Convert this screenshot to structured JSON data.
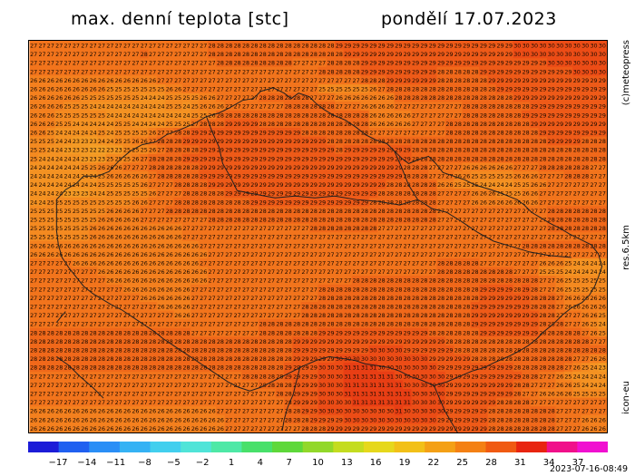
{
  "header": {
    "title": "max. denní teplota [stc]",
    "date": "pondělí 17.07.2023"
  },
  "side": {
    "credit": "(c)meteopress",
    "resolution": "res.6.5km",
    "model": "icon-eu"
  },
  "timestamp": "2023-07-16-08:49",
  "colorscale": {
    "tick_labels": [
      "−17",
      "−14",
      "−11",
      "−8",
      "−5",
      "−2",
      "1",
      "4",
      "7",
      "10",
      "13",
      "16",
      "19",
      "22",
      "25",
      "28",
      "31",
      "34",
      "37"
    ],
    "colors": [
      "#1c1cd8",
      "#2060f0",
      "#2a8ef6",
      "#35b2f4",
      "#42cfee",
      "#50e4d8",
      "#4ee8a6",
      "#48e06a",
      "#5ed83a",
      "#92d82a",
      "#c4dc20",
      "#e6d81c",
      "#f2c018",
      "#f4a016",
      "#f48014",
      "#f05a12",
      "#e82410",
      "#f0108a",
      "#f010d0"
    ]
  },
  "map_palette": {
    "21": "#f4a828",
    "22": "#f4a026",
    "23": "#f49a24",
    "24": "#f49222",
    "25": "#f48a20",
    "26": "#f4801e",
    "27": "#f2741c",
    "28": "#f0681a",
    "29": "#ee5a18",
    "30": "#ec4c16",
    "31": "#e83e14"
  },
  "grid": {
    "rows": [
      "2727272727272727272727272727272727272727272828282828282828282828282828282929292929292929292929292929292929292929293030303030303030303030",
      "2727272727272727272727272728272727272727272828282828282828282828282828282829292929292929292929292929292929292929293030303030303030303030",
      "2727272727272727272727272727272727272727272728282828282828282827272727282828282929292929292929292929292929292929292929292930303030303030",
      "2727272727272727272727272727272727272727272727272727272727272727272728282828282929292929292929292828282828292929292929292929292930303030",
      "2626262626262626262626262626262727272727272727272727272727272727272727272727272828282929292929292828282828282929292929292929292929292929",
      "2626262626262626262525252525252526262727272727272727272727272727272725252525252526272828282828282828282828282829292929292929292929292929",
      "2626262626262525252525252524242425252525262627272727272828282828282727272626262626262628282828282828282828282828282929292929292929292929",
      "2626262625252524242424242424242425252425262626272727272727272828282828282727272626262627272727272727272828282828282828292929292929292929",
      "2626262525252525252424242424242424242425252628282828282828282828282828282828282826262626262727272727272828282828282829292929292929292929",
      "2626262525242424242425252424242425252527282828292929292828282828282828282828282826262626262727272728282828282828282828292929292929292929",
      "2626252424242424252425252525262727282829292929292929292929292929282828282828282827272727272727272728282828282828282828282929292929292929",
      "2525252424232323242425252626272828282929292929292929292929292929292929282828282828282828282828282828282828282828282828282829292929282828",
      "2525242423232322222323252525262728282828292929292929292929292929292929292829292929292929292828282828282828282828282828282828282828282828",
      "2524242424242323232525252627282828282929292929292929292929292929292929292929292929292929292828282828282828282828282828282828282828282828",
      "2424242424242525262626272727282828282828292929292929292929292929292929292929292929292929282828272727272626262626262727272828282828282727",
      "2424242424242424252626262626272828282828292929292929292929292929292929292929292929292929282828272727262625252525252626262727272828282727",
      "2424242424242424252525252526272727282828282929292929292929292929292929292929292929292828282828282626252525242424242525262627272727272727",
      "2424242423232324242525252525262727272828282828292929292929292929292929292929292929282828282828282727272726262625252526262727272727272727",
      "2424252525252525252525252626272727282828282828282828292929292929292929292929292928282828282828282727272726262626262626262727272727272727",
      "2525252525252525252626262627272728282828282828282828282828282828282828282828282828282828282828282727272727272727272727272728282828282828",
      "2525252525252525262626262627272727272727272828282828282828282828282828282828282828282828282828282727272727272727272727272728282828282828",
      "2525252525252526262626262626262626262727272727272727272727272727272828282828282828272727272727272727272727272727272727272728282828282828",
      "2525252525252526262626262626262626262727272727272727272727272727272727272727272727272727272727272727272727272727272727272727272727272727",
      "2626262626262626262626262626262626262626272727272727272727272727272727272727272727272727272727272727272727272727272728282828282828282828",
      "2626262626262626262626262626262626262626262727272727272727272727272727272727272727272727272727272727272727272727272727272727272727272727",
      "2727272727262626262626262626262626262626272727272727272727272727272727272727272727272727272727272828282828272727272727272626262524242424",
      "2727272727272727262626262626262626262626262727272727272727272727272727272727272727272727272727272828282828282828282727272525252424242424",
      "2727272727272727272626262626262626262626262727272727272727272727272727272727282828282828282828282828282828282828282828282727262525252525",
      "2727272727272727272727262626262626262627272727272727272727272727272728282828282828282828282828282828282828292929292829282727262525252525",
      "2727272727272727272727272726262626262627272727272727272727272727272728282828282828282828282828282828282828292929292929282828272626262626",
      "2727272727272727272727272727272626262627272727272727272727272727282828282828282828282828282828282828282829292929292929282828272626262626",
      "2727272727272727272727272727272727262627272727272727272727272727282828282828282828282828282828282828282829292929292929292828272727262625",
      "2727272727272727272727272727272727272727272727272727272828282828282828282828282828282828282828282828282829292929292929292828282727262524",
      "2828282828282828282828282828282828282827272727272727272828282828282829292929292929292929292929282828282828292929292929292828282828272625",
      "2828282828282828282828282828282828282828282828282828282828282829292929292929292929292929292929292928282828282828282828282828282828282727",
      "2828282828282828282828282828282828282828282828282828282828282829292929292929292930303030292929292929282828282828282828282828282828282828",
      "2828282828282828282828282828282828282828282828282828282828282829292929293030303030303030303030292929292928282828282828282828282827272626",
      "2828282828282828282828282828282828282828282828282828282828282929292930303031313131303030303030302929292929292929292828282828282726252423",
      "2727272727272727272727272727272727272727272727272728282828282929292930303031313131313130303030303029292929292929292928282727262524242424",
      "2727272727272727272727272727272727272727272727272727272828282829292930303031313131313131303030303029292929292929292828272727262625242424",
      "2727272727272727272727272727272727272727272727272727272727282829292930303031313131313131313030303029292929292929292827272626262625252525",
      "2727272727272727272727272727272727272727272727272727272727272829292930303030313131313131313030303029292929292928282828272727272727272727",
      "2626262626262626262626262626262626262626262627272727272727272828292930303030303030303031303030303029292929292828282828282828272727272727",
      "2626262626262626262626262626262626262626262626272727272727272828282929292930303030303030303030302929292929292828282828282828272727262626",
      "2626262626262626262626262626262626262626262626272727272727272727282828292929292929292929292929292929292929292828282828282828272727262626"
    ]
  }
}
